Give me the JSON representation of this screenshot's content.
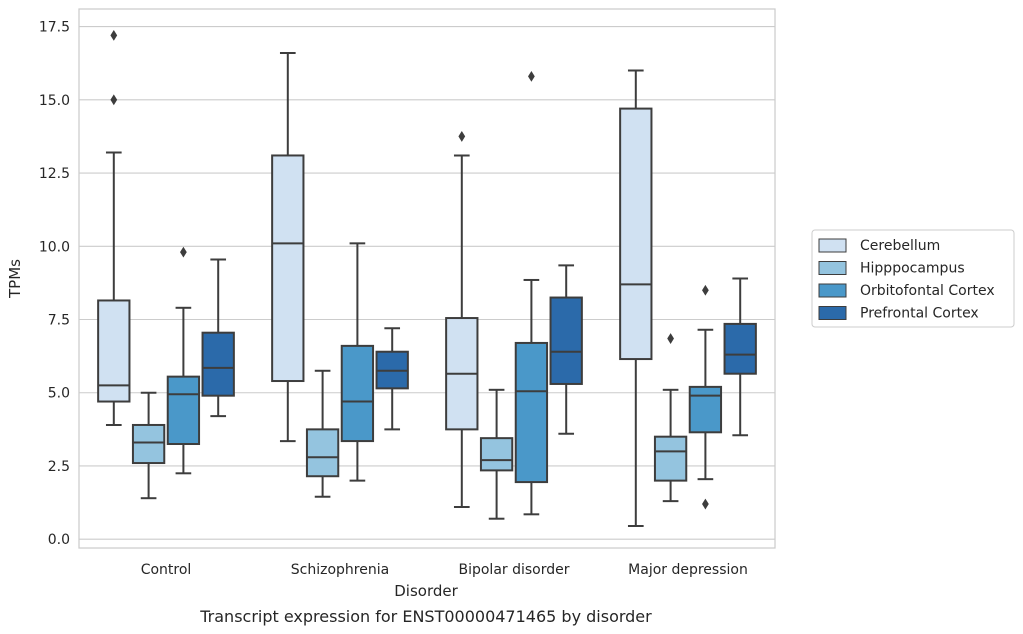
{
  "chart_data": {
    "type": "box",
    "title": "",
    "caption": "Transcript expression for ENST00000471465 by disorder",
    "xlabel": "Disorder",
    "ylabel": "TPMs",
    "ylim": [
      -0.3,
      18.1
    ],
    "yticks": [
      0.0,
      2.5,
      5.0,
      7.5,
      10.0,
      12.5,
      15.0,
      17.5
    ],
    "ytick_labels": [
      "0.0",
      "2.5",
      "5.0",
      "7.5",
      "10.0",
      "12.5",
      "15.0",
      "17.5"
    ],
    "grid": "horizontal",
    "legend_position": "right",
    "categories": [
      "Control",
      "Schizophrenia",
      "Bipolar disorder",
      "Major depression"
    ],
    "series": [
      {
        "name": "Cerebellum",
        "color": "#d0e1f2",
        "boxes": [
          {
            "whislo": 3.9,
            "q1": 4.7,
            "med": 5.25,
            "q3": 8.15,
            "whishi": 13.2,
            "fliers": [
              15.0,
              17.2
            ]
          },
          {
            "whislo": 3.35,
            "q1": 5.4,
            "med": 10.1,
            "q3": 13.1,
            "whishi": 16.6,
            "fliers": []
          },
          {
            "whislo": 1.1,
            "q1": 3.75,
            "med": 5.65,
            "q3": 7.55,
            "whishi": 13.1,
            "fliers": [
              13.75
            ]
          },
          {
            "whislo": 0.45,
            "q1": 6.15,
            "med": 8.7,
            "q3": 14.7,
            "whishi": 16.0,
            "fliers": []
          }
        ]
      },
      {
        "name": "Hipppocampus",
        "color": "#94c4df",
        "boxes": [
          {
            "whislo": 1.4,
            "q1": 2.6,
            "med": 3.3,
            "q3": 3.9,
            "whishi": 5.0,
            "fliers": []
          },
          {
            "whislo": 1.45,
            "q1": 2.15,
            "med": 2.8,
            "q3": 3.75,
            "whishi": 5.75,
            "fliers": []
          },
          {
            "whislo": 0.7,
            "q1": 2.35,
            "med": 2.7,
            "q3": 3.45,
            "whishi": 5.1,
            "fliers": []
          },
          {
            "whislo": 1.3,
            "q1": 2.0,
            "med": 3.0,
            "q3": 3.5,
            "whishi": 5.1,
            "fliers": [
              6.85
            ]
          }
        ]
      },
      {
        "name": "Orbitofontal Cortex",
        "color": "#4a98c9",
        "boxes": [
          {
            "whislo": 2.25,
            "q1": 3.25,
            "med": 4.95,
            "q3": 5.55,
            "whishi": 7.9,
            "fliers": [
              9.8
            ]
          },
          {
            "whislo": 2.0,
            "q1": 3.35,
            "med": 4.7,
            "q3": 6.6,
            "whishi": 10.1,
            "fliers": []
          },
          {
            "whislo": 0.85,
            "q1": 1.95,
            "med": 5.05,
            "q3": 6.7,
            "whishi": 8.85,
            "fliers": [
              15.8
            ]
          },
          {
            "whislo": 2.05,
            "q1": 3.65,
            "med": 4.9,
            "q3": 5.2,
            "whishi": 7.15,
            "fliers": [
              1.2,
              8.5
            ]
          }
        ]
      },
      {
        "name": "Prefrontal Cortex",
        "color": "#2b6aaa",
        "boxes": [
          {
            "whislo": 4.2,
            "q1": 4.9,
            "med": 5.85,
            "q3": 7.05,
            "whishi": 9.55,
            "fliers": []
          },
          {
            "whislo": 3.75,
            "q1": 5.15,
            "med": 5.75,
            "q3": 6.4,
            "whishi": 7.2,
            "fliers": []
          },
          {
            "whislo": 3.6,
            "q1": 5.3,
            "med": 6.4,
            "q3": 8.25,
            "whishi": 9.35,
            "fliers": []
          },
          {
            "whislo": 3.55,
            "q1": 5.65,
            "med": 6.3,
            "q3": 7.35,
            "whishi": 8.9,
            "fliers": []
          }
        ]
      }
    ]
  }
}
